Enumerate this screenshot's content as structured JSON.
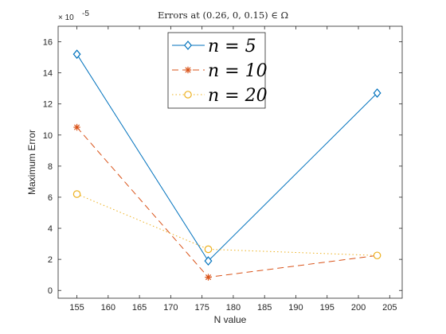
{
  "chart_data": {
    "type": "line",
    "title": "Errors at (0.26, 0, 0.15) ∈ Ω",
    "xlabel": "N value",
    "ylabel": "Maximum Error",
    "y_exponent": "× 10",
    "y_exponent_power": "-5",
    "xlim": [
      152,
      207
    ],
    "ylim": [
      -0.5,
      17
    ],
    "xticks": [
      155,
      160,
      165,
      170,
      175,
      180,
      185,
      190,
      195,
      200,
      205
    ],
    "yticks": [
      0,
      2,
      4,
      6,
      8,
      10,
      12,
      14,
      16
    ],
    "x": [
      155,
      176,
      203
    ],
    "grid": false,
    "legend_position": "top",
    "series": [
      {
        "name": "n = 5",
        "values": [
          15.2,
          1.9,
          12.7
        ],
        "color": "#0072BD",
        "marker": "diamond",
        "dash": "solid"
      },
      {
        "name": "n = 10",
        "values": [
          10.5,
          0.85,
          2.25
        ],
        "color": "#D95319",
        "marker": "asterisk",
        "dash": "dashed"
      },
      {
        "name": "n = 20",
        "values": [
          6.2,
          2.65,
          2.25
        ],
        "color": "#EDB120",
        "marker": "circle",
        "dash": "dotted"
      }
    ]
  }
}
